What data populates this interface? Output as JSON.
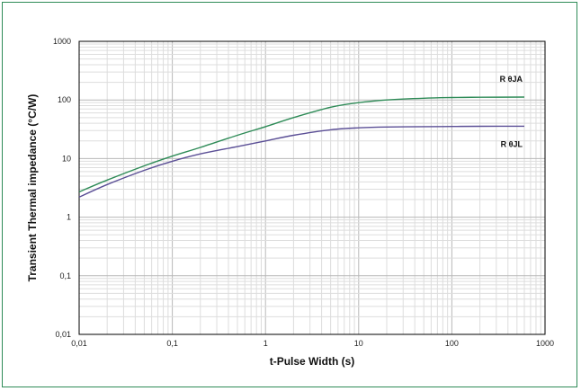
{
  "chart_data": {
    "type": "line",
    "title": "",
    "xlabel": "t-Pulse Width (s)",
    "ylabel": "Transient Thermal impedance (°C/W)",
    "x_scale": "log",
    "y_scale": "log",
    "xlim": [
      0.01,
      1000
    ],
    "ylim": [
      0.01,
      1000
    ],
    "grid": true,
    "x_ticks": [
      {
        "value": 0.01,
        "label": "0,01"
      },
      {
        "value": 0.1,
        "label": "0,1"
      },
      {
        "value": 1,
        "label": "1"
      },
      {
        "value": 10,
        "label": "10"
      },
      {
        "value": 100,
        "label": "100"
      },
      {
        "value": 1000,
        "label": "1000"
      }
    ],
    "y_ticks": [
      {
        "value": 0.01,
        "label": "0,01"
      },
      {
        "value": 0.1,
        "label": "0,1"
      },
      {
        "value": 1,
        "label": "1"
      },
      {
        "value": 10,
        "label": "10"
      },
      {
        "value": 100,
        "label": "100"
      },
      {
        "value": 1000,
        "label": "1000"
      }
    ],
    "series": [
      {
        "name": "R θJA",
        "color": "#2e8b57",
        "x": [
          0.01,
          0.02,
          0.05,
          0.1,
          0.2,
          0.5,
          1,
          2,
          5,
          10,
          20,
          50,
          100,
          200,
          600
        ],
        "y": [
          2.7,
          4.3,
          7.5,
          11,
          15.5,
          25,
          35,
          50,
          75,
          90,
          100,
          107,
          110,
          111,
          112
        ]
      },
      {
        "name": "R θJL",
        "color": "#5b4f96",
        "x": [
          0.01,
          0.02,
          0.05,
          0.1,
          0.2,
          0.5,
          1,
          2,
          5,
          10,
          20,
          50,
          100,
          200,
          600
        ],
        "y": [
          2.2,
          3.6,
          6.3,
          9,
          12,
          16,
          20,
          25,
          31,
          33.5,
          34.5,
          35,
          35.3,
          35.5,
          35.7
        ]
      }
    ]
  }
}
